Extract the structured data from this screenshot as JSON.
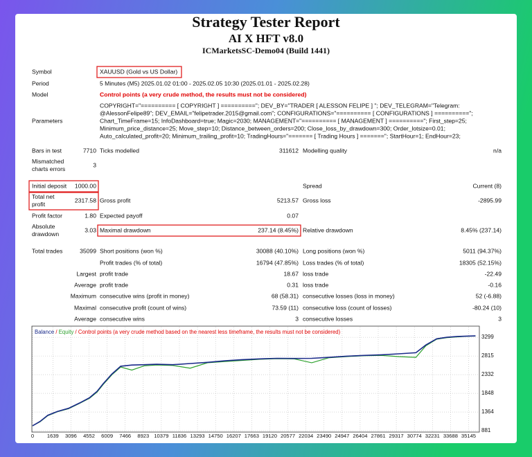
{
  "header": {
    "title": "Strategy Tester Report",
    "subtitle": "AI X HFT v8.0",
    "server": "ICMarketsSC-Demo04 (Build 1441)"
  },
  "table": {
    "rows": [
      {
        "label": "Symbol",
        "text": "XAUUSD (Gold vs US Dollar)"
      },
      {
        "label": "Period",
        "text": "5 Minutes (M5) 2025.01.02 01:00 - 2025.02.05 10:30 (2025.01.01 - 2025.02.28)"
      },
      {
        "label": "Model",
        "text": "Control points (a very crude method, the results must not be considered)",
        "color": "#e00000"
      },
      {
        "label": "Parameters",
        "lines": [
          "COPYRIGHT=\"========== [ COPYRIGHT ] ==========\"; DEV_BY=\"TRADER [ ALESSON FELIPE ] \"; DEV_TELEGRAM=\"Telegram:",
          "@AlessonFelipe89\"; DEV_EMAIL=\"felipetrader.2015@gmail.com\"; CONFIGURATIONS=\"========== [ CONFIGURATIONS ] ==========\";",
          "Chart_TimeFrame=15; InfoDashboard=true; Magic=2030; MANAGEMENT=\"========== [ MANAGEMENT ] ==========\"; First_step=25;",
          "Minimum_price_distance=25; Move_step=10; Distance_between_orders=200; Close_loss_by_drawdown=300; Order_lotsize=0.01;",
          "Auto_calculated_profit=20; Minimum_trailing_profit=10; TradingHours=\"======= [ Trading Hours ] =======\"; StartHour=1; EndHour=23;"
        ]
      },
      {
        "first": [
          "Bars in test",
          "7710"
        ],
        "pairs": [
          [
            "Ticks modelled",
            "311612"
          ],
          [
            "Modelling quality",
            "n/a"
          ]
        ]
      },
      {
        "first": [
          [
            "Mismatched",
            "charts errors"
          ],
          "3"
        ]
      },
      {
        "first": [
          "Initial deposit",
          "1000.00"
        ],
        "pairs": [
          [
            "Spread",
            "Current (8)"
          ]
        ],
        "skip": true
      },
      {
        "first": [
          [
            "Total net",
            "profit"
          ],
          "2317.58"
        ],
        "pairs": [
          [
            "Gross profit",
            "5213.57"
          ],
          [
            "Gross loss",
            "-2895.99"
          ]
        ]
      },
      {
        "first": [
          "Profit factor",
          "1.80"
        ],
        "pairs": [
          [
            "Expected payoff",
            "0.07"
          ]
        ]
      },
      {
        "first": [
          [
            "Absolute",
            "drawdown"
          ],
          "3.03"
        ],
        "pairs": [
          [
            "Maximal drawdown",
            "237.14 (8.45%)"
          ],
          [
            "Relative drawdown",
            "8.45% (237.14)"
          ]
        ]
      },
      {
        "first": [
          "Total trades",
          "35099"
        ],
        "pairs": [
          [
            "Short positions (won %)",
            "30088 (40.10%)"
          ],
          [
            "Long positions (won %)",
            "5011 (94.37%)"
          ]
        ]
      },
      {
        "pairs": [
          [
            "Profit trades (% of total)",
            "16794 (47.85%)"
          ],
          [
            "Loss trades (% of total)",
            "18305 (52.15%)"
          ]
        ]
      },
      {
        "lead": "Largest",
        "pairs": [
          [
            "profit trade",
            "18.67"
          ],
          [
            "loss trade",
            "-22.49"
          ]
        ]
      },
      {
        "lead": "Average",
        "pairs": [
          [
            "profit trade",
            "0.31"
          ],
          [
            "loss trade",
            "-0.16"
          ]
        ]
      },
      {
        "lead": "Maximum",
        "pairs": [
          [
            "consecutive wins (profit in money)",
            "68 (58.31)"
          ],
          [
            "consecutive losses (loss in money)",
            "52 (-6.88)"
          ]
        ]
      },
      {
        "lead": "Maximal",
        "pairs": [
          [
            "consecutive profit (count of wins)",
            "73.59 (11)"
          ],
          [
            "consecutive loss (count of losses)",
            "-80.24 (10)"
          ]
        ]
      },
      {
        "lead": "Average",
        "pairs": [
          [
            "consecutive wins",
            "3"
          ],
          [
            "consecutive losses",
            "3"
          ]
        ]
      }
    ]
  },
  "chart_data": {
    "type": "line",
    "separator": "/",
    "note": "Control points (a very crude method based on the nearest less timeframe, the results must not be considered)",
    "note_color": "#e00000",
    "x": [
      0,
      600,
      1230,
      2000,
      2900,
      3800,
      4590,
      5200,
      5700,
      6400,
      7100,
      8000,
      9000,
      10000,
      11300,
      12700,
      14100,
      15500,
      16900,
      18300,
      19700,
      21100,
      22500,
      23900,
      25300,
      26700,
      28100,
      29500,
      30900,
      31700,
      32570,
      33400,
      34250,
      35000,
      35700
    ],
    "series": [
      {
        "name": "Balance",
        "color": "#1a2a8a",
        "values": [
          1008,
          1120,
          1280,
          1380,
          1460,
          1600,
          1735,
          1900,
          2100,
          2350,
          2550,
          2580,
          2590,
          2600,
          2590,
          2620,
          2650,
          2690,
          2720,
          2740,
          2755,
          2750,
          2755,
          2780,
          2810,
          2830,
          2845,
          2870,
          2900,
          3100,
          3260,
          3300,
          3320,
          3330,
          3335
        ]
      },
      {
        "name": "Equity",
        "color": "#2ca02c",
        "values": [
          1008,
          1110,
          1270,
          1370,
          1450,
          1590,
          1720,
          1880,
          2080,
          2330,
          2530,
          2450,
          2560,
          2580,
          2570,
          2500,
          2640,
          2670,
          2700,
          2730,
          2745,
          2740,
          2640,
          2770,
          2800,
          2820,
          2830,
          2800,
          2780,
          3080,
          3250,
          3290,
          3310,
          3325,
          3330
        ]
      }
    ],
    "xlim": [
      0,
      35900
    ],
    "ylim": [
      881,
      3570
    ],
    "xticks": [
      0,
      1639,
      3096,
      4552,
      6009,
      7466,
      8923,
      10379,
      11836,
      13293,
      14750,
      16207,
      17663,
      19120,
      20577,
      22034,
      23490,
      24947,
      26404,
      27861,
      29317,
      30774,
      32231,
      33688,
      35145
    ],
    "yticks": [
      881,
      1364,
      1848,
      2332,
      2815,
      3299
    ],
    "grid": true
  }
}
